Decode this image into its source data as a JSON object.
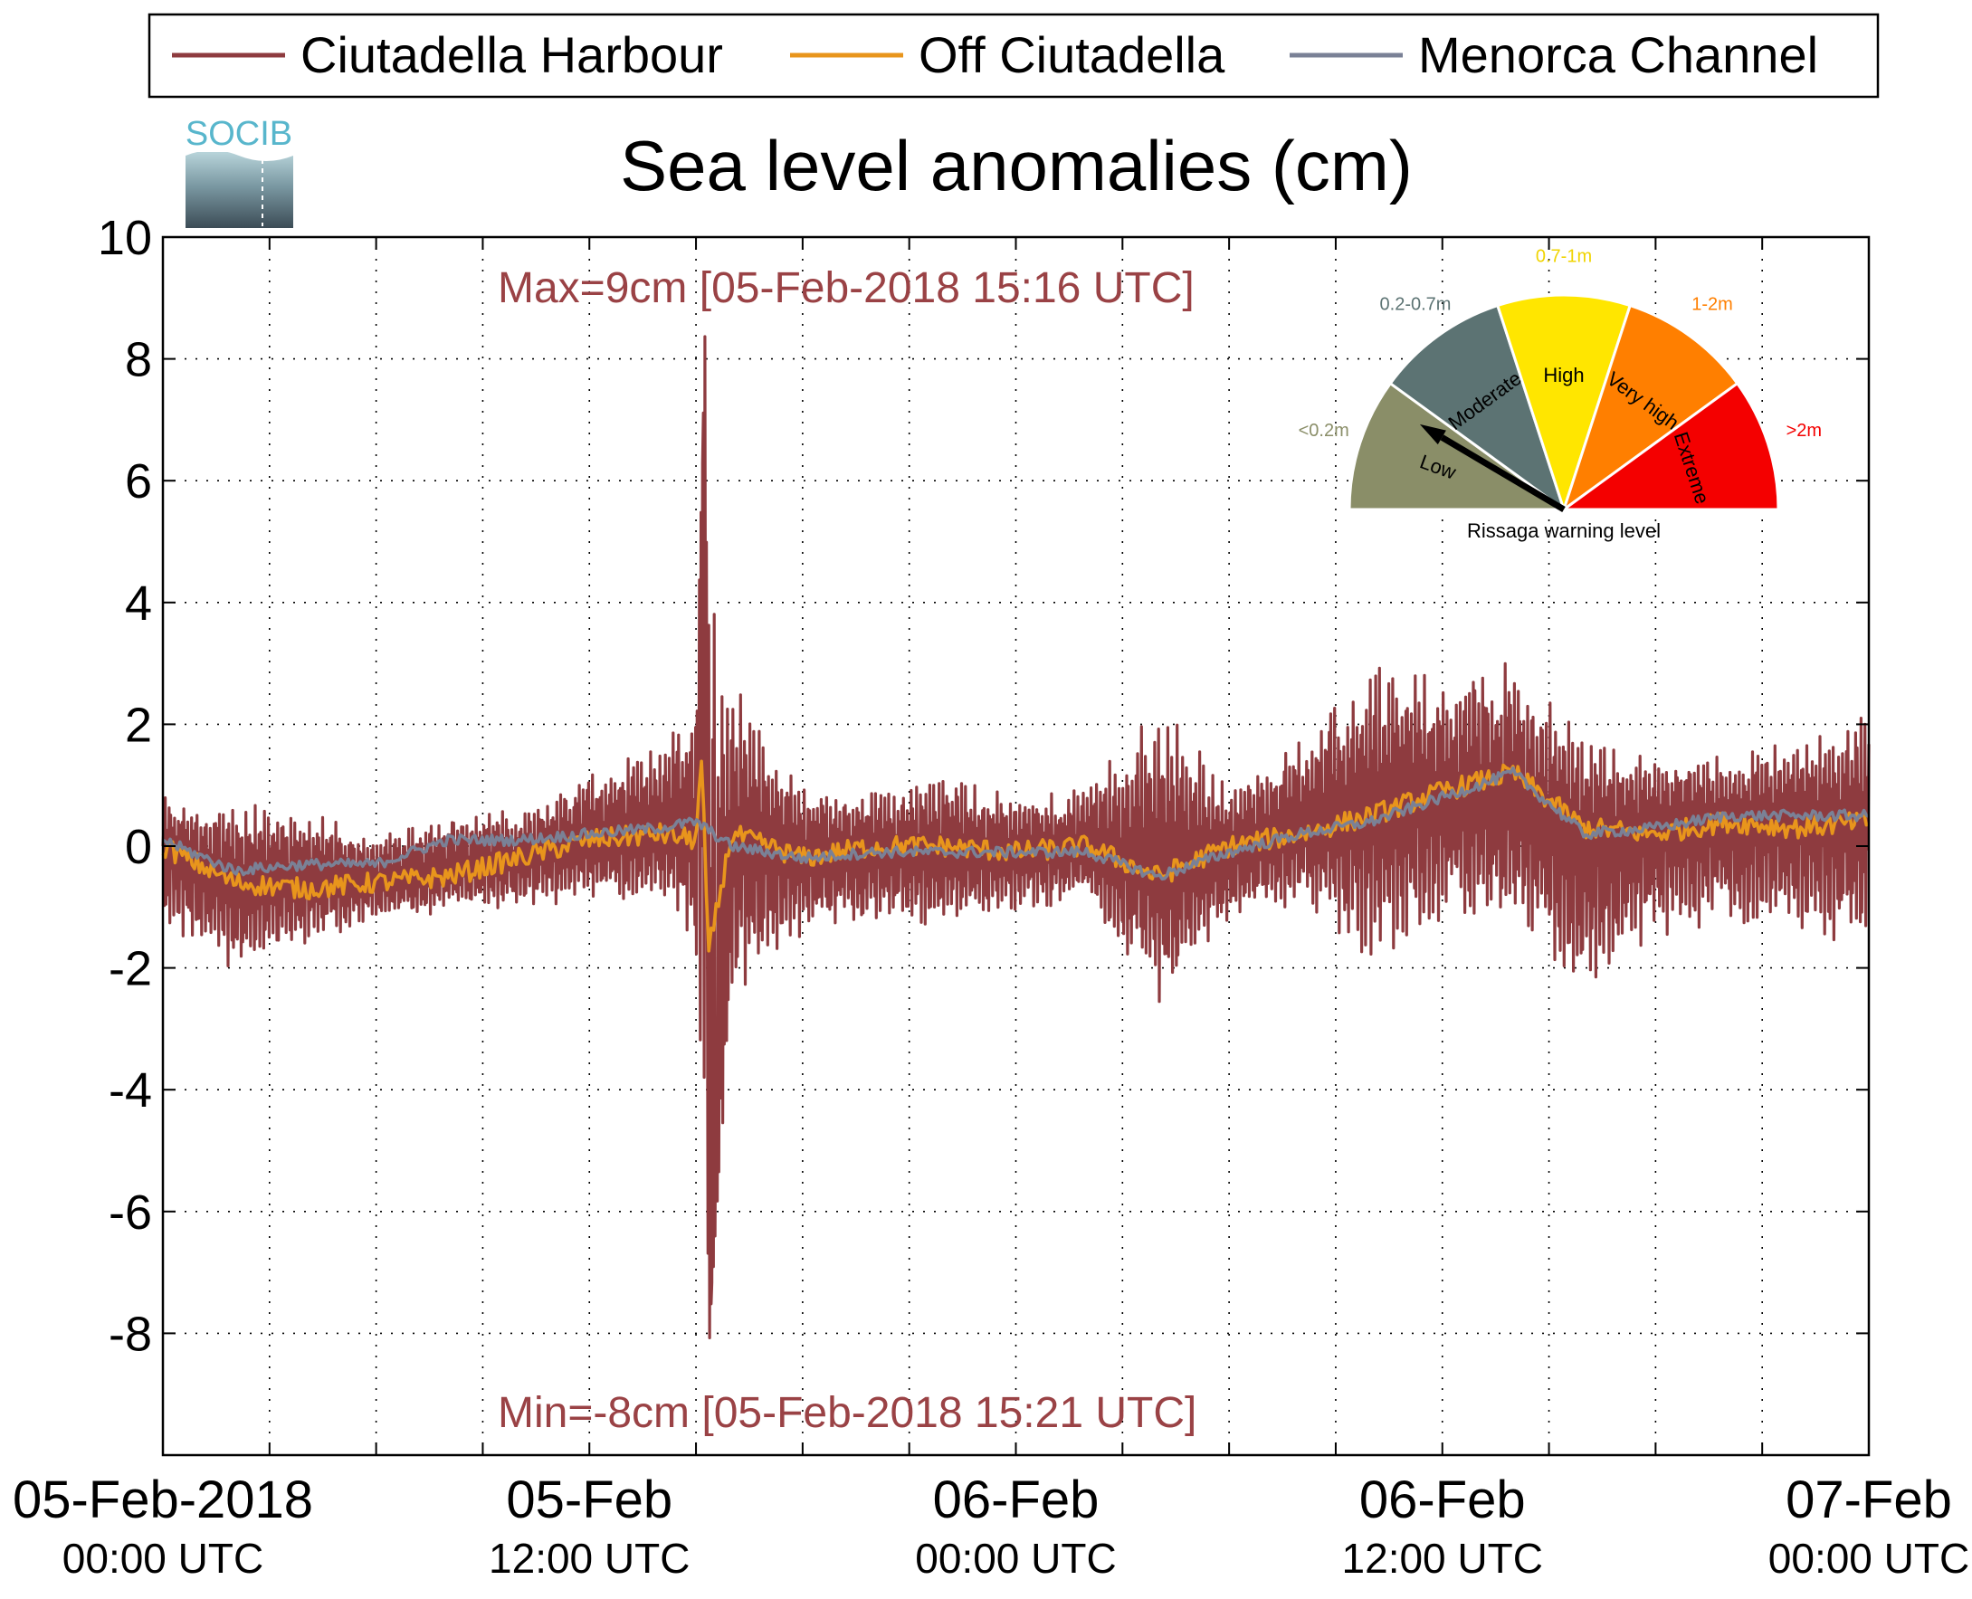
{
  "logo": {
    "text": "SOCIB"
  },
  "colors": {
    "harbour": "#8e3b3f",
    "off": "#e8951c",
    "channel": "#7a8196",
    "annotation": "#9a4245"
  },
  "chart_data": {
    "type": "line",
    "title": "Sea level anomalies (cm)",
    "xlabel": "",
    "ylabel": "",
    "ylim": [
      -10,
      10
    ],
    "xlim": [
      "2018-02-05T00:00Z",
      "2018-02-07T00:00Z"
    ],
    "grid": true,
    "legend_position": "top",
    "x_ticks": [
      {
        "top": "05-Feb-2018",
        "bottom": "00:00 UTC",
        "t": "2018-02-05T00:00Z"
      },
      {
        "top": "05-Feb",
        "bottom": "12:00 UTC",
        "t": "2018-02-05T12:00Z"
      },
      {
        "top": "06-Feb",
        "bottom": "00:00 UTC",
        "t": "2018-02-06T00:00Z"
      },
      {
        "top": "06-Feb",
        "bottom": "12:00 UTC",
        "t": "2018-02-06T12:00Z"
      },
      {
        "top": "07-Feb",
        "bottom": "00:00 UTC",
        "t": "2018-02-07T00:00Z"
      }
    ],
    "y_ticks": [
      "10",
      "8",
      "6",
      "4",
      "2",
      "0",
      "-2",
      "-4",
      "-6",
      "-8"
    ],
    "annotations": {
      "max": "Max=9cm [05-Feb-2018 15:16 UTC]",
      "min": "Min=-8cm [05-Feb-2018 15:21 UTC]"
    },
    "series": [
      {
        "name": "Ciutadella Harbour",
        "color": "#8e3b3f",
        "x": [
          "2018-02-05T00:00Z",
          "2018-02-05T02:00Z",
          "2018-02-05T04:00Z",
          "2018-02-05T06:00Z",
          "2018-02-05T08:00Z",
          "2018-02-05T10:00Z",
          "2018-02-05T12:00Z",
          "2018-02-05T14:00Z",
          "2018-02-05T15:00Z",
          "2018-02-05T15:16Z",
          "2018-02-05T15:21Z",
          "2018-02-05T16:00Z",
          "2018-02-05T18:00Z",
          "2018-02-05T20:00Z",
          "2018-02-05T22:00Z",
          "2018-02-06T00:00Z",
          "2018-02-06T02:00Z",
          "2018-02-06T04:00Z",
          "2018-02-06T06:00Z",
          "2018-02-06T08:00Z",
          "2018-02-06T10:00Z",
          "2018-02-06T12:00Z",
          "2018-02-06T14:00Z",
          "2018-02-06T16:00Z",
          "2018-02-06T18:00Z",
          "2018-02-06T20:00Z",
          "2018-02-06T22:00Z",
          "2018-02-07T00:00Z"
        ],
        "min": [
          -1.3,
          -2.1,
          -1.7,
          -1.2,
          -1.1,
          -1.0,
          -1.0,
          -0.9,
          -2.0,
          -7.0,
          -8.4,
          -2.8,
          -1.5,
          -1.3,
          -1.4,
          -1.1,
          -1.0,
          -2.6,
          -1.3,
          -1.0,
          -2.0,
          -1.3,
          -1.2,
          -2.5,
          -1.5,
          -1.4,
          -1.4,
          -1.7
        ],
        "max": [
          0.8,
          0.7,
          0.6,
          0.2,
          0.6,
          0.6,
          1.2,
          1.8,
          2.2,
          8.8,
          8.2,
          2.9,
          1.1,
          0.9,
          1.2,
          0.8,
          1.0,
          2.4,
          1.0,
          1.8,
          3.1,
          2.8,
          3.2,
          1.8,
          1.6,
          1.5,
          1.8,
          2.2
        ],
        "values": [
          0.0,
          -0.6,
          -0.5,
          -0.6,
          -0.4,
          -0.2,
          0.1,
          0.3,
          0.5,
          8.8,
          -8.4,
          0.2,
          -0.2,
          0.0,
          -0.1,
          -0.1,
          0.0,
          -0.4,
          -0.1,
          0.3,
          0.6,
          0.8,
          0.6,
          0.1,
          0.3,
          0.4,
          0.4,
          0.4
        ]
      },
      {
        "name": "Off Ciutadella",
        "color": "#e8951c",
        "x": [
          "2018-02-05T00:00Z",
          "2018-02-05T02:00Z",
          "2018-02-05T04:00Z",
          "2018-02-05T06:00Z",
          "2018-02-05T08:00Z",
          "2018-02-05T10:00Z",
          "2018-02-05T12:00Z",
          "2018-02-05T14:00Z",
          "2018-02-05T15:00Z",
          "2018-02-05T15:10Z",
          "2018-02-05T15:20Z",
          "2018-02-05T16:00Z",
          "2018-02-05T18:00Z",
          "2018-02-05T20:00Z",
          "2018-02-05T22:00Z",
          "2018-02-06T00:00Z",
          "2018-02-06T02:00Z",
          "2018-02-06T04:00Z",
          "2018-02-06T06:00Z",
          "2018-02-06T08:00Z",
          "2018-02-06T10:00Z",
          "2018-02-06T12:00Z",
          "2018-02-06T14:00Z",
          "2018-02-06T16:00Z",
          "2018-02-06T18:00Z",
          "2018-02-06T20:00Z",
          "2018-02-06T22:00Z",
          "2018-02-07T00:00Z"
        ],
        "values": [
          0.0,
          -0.6,
          -0.7,
          -0.6,
          -0.5,
          -0.2,
          0.1,
          0.2,
          0.1,
          1.5,
          -1.8,
          0.2,
          -0.2,
          0.0,
          0.0,
          -0.1,
          0.0,
          -0.5,
          0.0,
          0.2,
          0.5,
          0.9,
          1.2,
          0.3,
          0.2,
          0.4,
          0.3,
          0.4
        ]
      },
      {
        "name": "Menorca Channel",
        "color": "#7a8196",
        "x": [
          "2018-02-05T00:00Z",
          "2018-02-05T02:00Z",
          "2018-02-05T04:00Z",
          "2018-02-05T06:00Z",
          "2018-02-05T08:00Z",
          "2018-02-05T10:00Z",
          "2018-02-05T12:00Z",
          "2018-02-05T14:00Z",
          "2018-02-05T15:00Z",
          "2018-02-05T16:00Z",
          "2018-02-05T18:00Z",
          "2018-02-05T20:00Z",
          "2018-02-05T22:00Z",
          "2018-02-06T00:00Z",
          "2018-02-06T02:00Z",
          "2018-02-06T04:00Z",
          "2018-02-06T06:00Z",
          "2018-02-06T08:00Z",
          "2018-02-06T10:00Z",
          "2018-02-06T12:00Z",
          "2018-02-06T14:00Z",
          "2018-02-06T16:00Z",
          "2018-02-06T18:00Z",
          "2018-02-06T20:00Z",
          "2018-02-06T22:00Z",
          "2018-02-07T00:00Z"
        ],
        "values": [
          0.1,
          -0.4,
          -0.3,
          -0.3,
          0.1,
          0.1,
          0.2,
          0.3,
          0.4,
          0.0,
          -0.2,
          -0.1,
          -0.1,
          -0.1,
          -0.1,
          -0.5,
          -0.1,
          0.2,
          0.4,
          0.8,
          1.2,
          0.2,
          0.3,
          0.5,
          0.5,
          0.5
        ]
      }
    ]
  },
  "gauge": {
    "caption": "Rissaga warning level",
    "needle_level": "Low",
    "segments": [
      {
        "name": "Low",
        "range": "<0.2m",
        "color": "#8a8e68",
        "range_color": "#8a8e68"
      },
      {
        "name": "Moderate",
        "range": "0.2-0.7m",
        "color": "#5c7373",
        "range_color": "#5c7373"
      },
      {
        "name": "High",
        "range": "0.7-1m",
        "color": "#ffe600",
        "range_color": "#f0d400"
      },
      {
        "name": "Very high",
        "range": "1-2m",
        "color": "#ff7f00",
        "range_color": "#ff7f00"
      },
      {
        "name": "Extreme",
        "range": ">2m",
        "color": "#f40000",
        "range_color": "#f40000"
      }
    ]
  }
}
